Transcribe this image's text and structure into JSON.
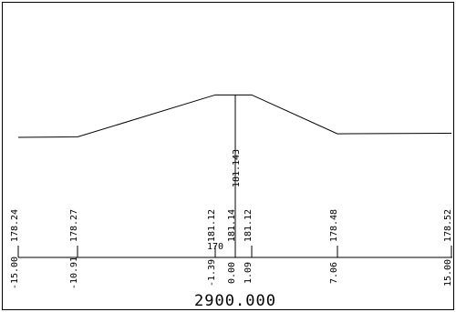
{
  "section": {
    "station_label": "2900.000",
    "datum_label": "170",
    "centerline_elevation_label": "181.143",
    "points": [
      {
        "offset_label": "-15.00",
        "offset": -15.0,
        "elevation_label": "178.24",
        "elevation": 178.24
      },
      {
        "offset_label": "-10.91",
        "offset": -10.91,
        "elevation_label": "178.27",
        "elevation": 178.27
      },
      {
        "offset_label": "-1.39",
        "offset": -1.39,
        "elevation_label": "181.12",
        "elevation": 181.12
      },
      {
        "offset_label": "0.00",
        "offset": 0.0,
        "elevation_label": "181.14",
        "elevation": 181.14
      },
      {
        "offset_label": "1.09",
        "offset": 1.09,
        "elevation_label": "181.12",
        "elevation": 181.12
      },
      {
        "offset_label": "7.06",
        "offset": 7.06,
        "elevation_label": "178.48",
        "elevation": 178.48
      },
      {
        "offset_label": "15.00",
        "offset": 15.0,
        "elevation_label": "178.52",
        "elevation": 178.52
      }
    ]
  }
}
